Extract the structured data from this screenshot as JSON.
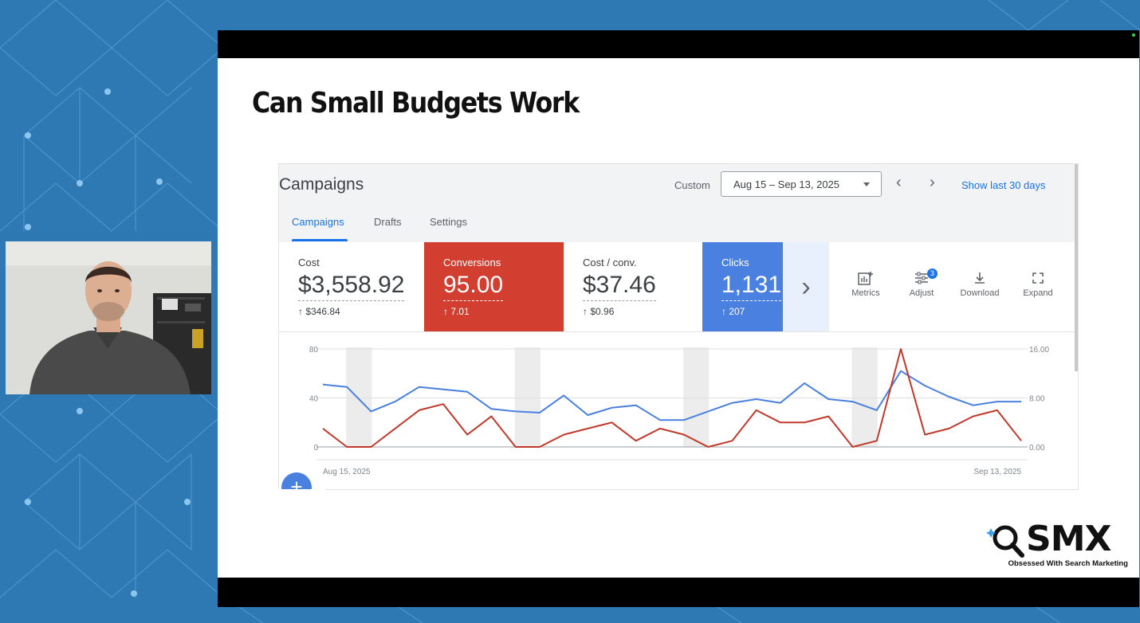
{
  "slide": {
    "title": "Can Small Budgets Work"
  },
  "ads": {
    "title": "Campaigns",
    "custom_label": "Custom",
    "date_range": "Aug 15 – Sep 13, 2025",
    "show_last": "Show last 30 days",
    "tabs": [
      "Campaigns",
      "Drafts",
      "Settings"
    ],
    "active_tab": "Campaigns",
    "cards": [
      {
        "label": "Cost",
        "value": "$3,558.92",
        "delta": "↑ $346.84",
        "color": "#ffffff"
      },
      {
        "label": "Conversions",
        "value": "95.00",
        "delta": "↑ 7.01",
        "color": "#d23f31"
      },
      {
        "label": "Cost / conv.",
        "value": "$37.46",
        "delta": "↑ $0.96",
        "color": "#ffffff"
      },
      {
        "label": "Clicks",
        "value": "1,131",
        "delta": "↑ 207",
        "color": "#4a80e0"
      }
    ],
    "tools": [
      {
        "label": "Metrics",
        "icon": "bar-chart-add-icon"
      },
      {
        "label": "Adjust",
        "icon": "tune-icon",
        "badge": "3"
      },
      {
        "label": "Download",
        "icon": "download-icon"
      },
      {
        "label": "Expand",
        "icon": "fullscreen-icon"
      }
    ]
  },
  "chart_data": {
    "type": "line",
    "x_start_label": "Aug 15, 2025",
    "x_end_label": "Sep 13, 2025",
    "left_axis_ticks": [
      "80",
      "40",
      "0"
    ],
    "right_axis_ticks": [
      "16.00",
      "8.00",
      "0.00"
    ],
    "ylim_left": [
      0,
      80
    ],
    "ylim_right": [
      0,
      16
    ],
    "series": [
      {
        "axis": "left",
        "color": "#4a80e0",
        "values": [
          51,
          49,
          29,
          37,
          49,
          47,
          45,
          31,
          29,
          28,
          42,
          26,
          32,
          34,
          22,
          22,
          29,
          36,
          39,
          36,
          52,
          39,
          37,
          30,
          62,
          50,
          41,
          34,
          37,
          37
        ]
      },
      {
        "axis": "right",
        "color": "#c0392b",
        "values": [
          3.0,
          0.0,
          0.0,
          3.0,
          6.0,
          7.0,
          2.0,
          5.0,
          0.0,
          0.0,
          2.0,
          3.0,
          4.0,
          1.0,
          3.0,
          2.0,
          0.0,
          1.0,
          6.0,
          4.0,
          4.0,
          5.0,
          0.0,
          1.0,
          16.0,
          2.0,
          3.0,
          5.0,
          6.0,
          1.0
        ]
      }
    ],
    "weekend_bands": [
      [
        1,
        2
      ],
      [
        8,
        9
      ],
      [
        15,
        16
      ],
      [
        22,
        23
      ]
    ],
    "grid": true
  },
  "brand": {
    "name": "SMX",
    "tagline": "Obsessed With Search Marketing"
  }
}
